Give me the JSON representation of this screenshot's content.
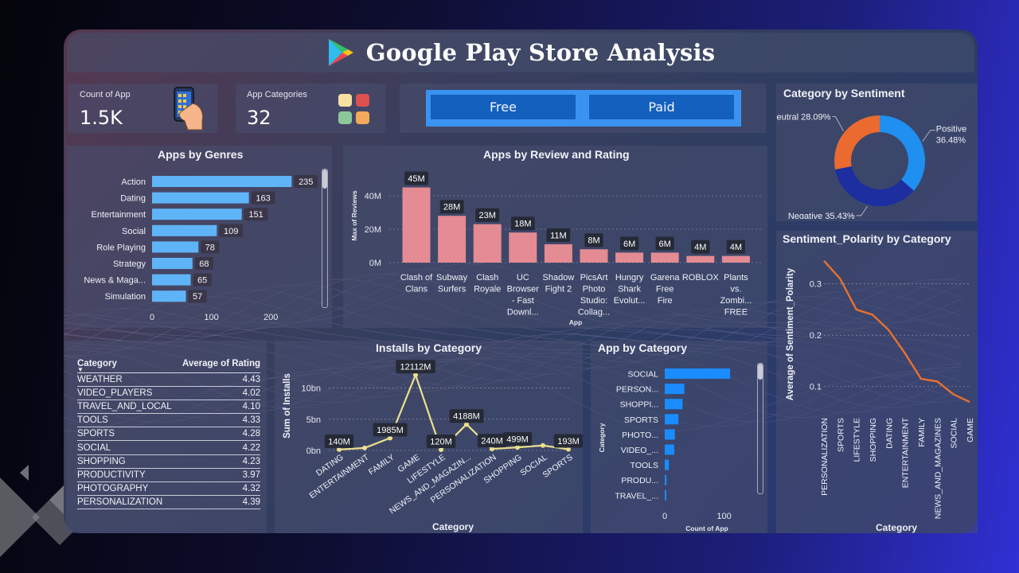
{
  "title": "Google Play Store Analysis",
  "kpis": {
    "count_label": "Count of App",
    "count_value": "1.5K",
    "categories_label": "App Categories",
    "categories_value": "32"
  },
  "slicer": {
    "free_label": "Free",
    "paid_label": "Paid"
  },
  "colors": {
    "genre_bar": "#5fb4f8",
    "review_bar": "#e48b93",
    "installs_line": "#ebe08c",
    "category_bar": "#1a8cff",
    "polarity_line": "#e8712e",
    "positive": "#1f8ff0",
    "negative": "#1c2ea0",
    "neutral": "#ea6a30"
  },
  "icons": {
    "phone": "phone-in-hand-icon",
    "categories": "colored-squares-icon",
    "logo": "google-play-logo-icon"
  },
  "charts": {
    "genres": {
      "title": "Apps by Genres",
      "chart_data": {
        "type": "bar",
        "orientation": "horizontal",
        "categories": [
          "Action",
          "Dating",
          "Entertainment",
          "Social",
          "Role Playing",
          "Strategy",
          "News & Maga...",
          "Simulation"
        ],
        "values": [
          235,
          163,
          151,
          109,
          78,
          68,
          65,
          57
        ],
        "value_labels": [
          "235",
          "163",
          "151",
          "109",
          "78",
          "68",
          "65",
          "57"
        ],
        "xlim": [
          0,
          260
        ],
        "xticks": [
          "0",
          "100",
          "200"
        ],
        "xtick_values": [
          0,
          100,
          200
        ]
      }
    },
    "reviews": {
      "title": "Apps by Review and Rating",
      "chart_data": {
        "type": "bar",
        "categories": [
          [
            "Clash of",
            "Clans"
          ],
          [
            "Subway",
            "Surfers"
          ],
          [
            "Clash",
            "Royale"
          ],
          [
            "UC",
            "Browser",
            "- Fast",
            "Downl..."
          ],
          [
            "Shadow",
            "Fight 2"
          ],
          [
            "PicsArt",
            "Photo",
            "Studio:",
            "Collag..."
          ],
          [
            "Hungry",
            "Shark",
            "Evolut..."
          ],
          [
            "Garena",
            "Free",
            "Fire"
          ],
          [
            "ROBLOX"
          ],
          [
            "Plants",
            "vs.",
            "Zombi...",
            "FREE"
          ]
        ],
        "values": [
          45,
          28,
          23,
          18,
          11,
          8,
          6,
          6,
          4,
          4
        ],
        "value_labels": [
          "45M",
          "28M",
          "23M",
          "18M",
          "11M",
          "8M",
          "6M",
          "6M",
          "4M",
          "4M"
        ],
        "ylabel": "Max of Reviews",
        "xlabel": "App",
        "ylim": [
          0,
          50
        ],
        "yticks": [
          "0M",
          "20M",
          "40M"
        ],
        "ytick_values": [
          0,
          20,
          40
        ]
      }
    },
    "sentiment": {
      "title": "Category by Sentiment",
      "chart_data": {
        "type": "pie",
        "donut": true,
        "labels": [
          "Positive",
          "Negative",
          "Neutral"
        ],
        "values": [
          36.48,
          35.43,
          28.09
        ],
        "value_labels": [
          "36.48%",
          "35.43%",
          "28.09%"
        ]
      }
    },
    "rating_table": {
      "chart_data": {
        "type": "table",
        "columns": [
          "Category",
          "Average of Rating"
        ],
        "rows": [
          [
            "WEATHER",
            "4.43"
          ],
          [
            "VIDEO_PLAYERS",
            "4.02"
          ],
          [
            "TRAVEL_AND_LOCAL",
            "4.10"
          ],
          [
            "TOOLS",
            "4.33"
          ],
          [
            "SPORTS",
            "4.28"
          ],
          [
            "SOCIAL",
            "4.22"
          ],
          [
            "SHOPPING",
            "4.23"
          ],
          [
            "PRODUCTIVITY",
            "3.97"
          ],
          [
            "PHOTOGRAPHY",
            "4.32"
          ],
          [
            "PERSONALIZATION",
            "4.39"
          ]
        ]
      }
    },
    "installs": {
      "title": "Installs by Category",
      "chart_data": {
        "type": "line",
        "categories": [
          "DATING",
          "ENTERTAINMENT",
          "FAMILY",
          "GAME",
          "LIFESTYLE",
          "NEWS_AND_MAGAZIN...",
          "PERSONALIZATION",
          "SHOPPING",
          "SOCIAL",
          "SPORTS"
        ],
        "values": [
          140,
          400,
          1985,
          12112,
          120,
          4188,
          240,
          499,
          800,
          193
        ],
        "point_labels": [
          "140M",
          "",
          "1985M",
          "12112M",
          "120M",
          "4188M",
          "240M",
          "499M",
          "",
          "193M"
        ],
        "ylabel": "Sum of Installs",
        "xlabel": "Category",
        "ylim": [
          0,
          12000
        ],
        "yticks": [
          "0bn",
          "5bn",
          "10bn"
        ],
        "ytick_values": [
          0,
          5000,
          10000
        ]
      }
    },
    "app_by_category": {
      "title": "App by Category",
      "chart_data": {
        "type": "bar",
        "orientation": "horizontal",
        "categories": [
          "SOCIAL",
          "PERSON...",
          "SHOPPI...",
          "SPORTS",
          "PHOTO...",
          "VIDEO_...",
          "TOOLS",
          "PRODU...",
          "TRAVEL_..."
        ],
        "values": [
          110,
          33,
          30,
          23,
          17,
          16,
          7,
          3,
          2
        ],
        "xlabel": "Count of App",
        "ylabel": "Category",
        "xlim": [
          0,
          130
        ],
        "xticks": [
          "0",
          "100"
        ],
        "xtick_values": [
          0,
          100
        ]
      }
    },
    "polarity": {
      "title": "Sentiment_Polarity by Category",
      "chart_data": {
        "type": "line",
        "categories": [
          "PERSONALIZATION",
          "SPORTS",
          "LIFESTYLE",
          "SHOPPING",
          "DATING",
          "ENTERTAINMENT",
          "FAMILY",
          "NEWS_AND_MAGAZINES",
          "SOCIAL",
          "GAME"
        ],
        "values": [
          0.345,
          0.31,
          0.25,
          0.24,
          0.21,
          0.165,
          0.115,
          0.11,
          0.085,
          0.07
        ],
        "ylabel": "Average of Sentiment_Polarity",
        "xlabel": "Category",
        "ylim": [
          0.05,
          0.36
        ],
        "yticks": [
          "0.1",
          "0.2",
          "0.3"
        ],
        "ytick_values": [
          0.1,
          0.2,
          0.3
        ]
      }
    }
  }
}
